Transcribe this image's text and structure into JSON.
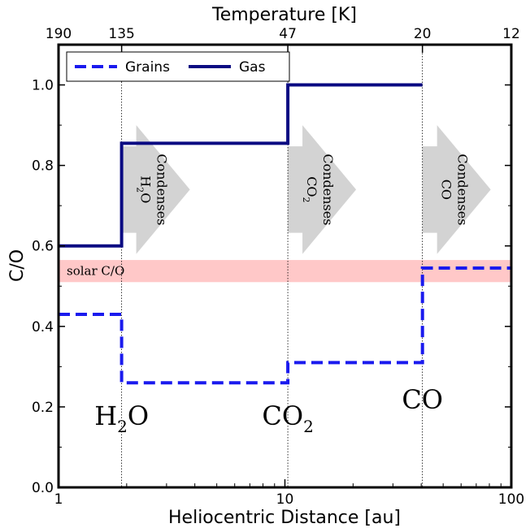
{
  "chart_data": {
    "type": "line",
    "xlabel": "Heliocentric Distance [au]",
    "ylabel": "C/O",
    "top_xlabel": "Temperature [K]",
    "xscale": "log",
    "xlim": [
      1,
      100
    ],
    "ylim": [
      0,
      1.1
    ],
    "x_ticks": [
      {
        "value": 1,
        "label": "1"
      },
      {
        "value": 10,
        "label": "10"
      },
      {
        "value": 100,
        "label": "100"
      }
    ],
    "y_ticks": [
      {
        "value": 0.0,
        "label": "0.0"
      },
      {
        "value": 0.2,
        "label": "0.2"
      },
      {
        "value": 0.4,
        "label": "0.4"
      },
      {
        "value": 0.6,
        "label": "0.6"
      },
      {
        "value": 0.8,
        "label": "0.8"
      },
      {
        "value": 1.0,
        "label": "1.0"
      }
    ],
    "top_ticks": [
      {
        "x": 1,
        "label": "190"
      },
      {
        "x": 1.9,
        "label": "135"
      },
      {
        "x": 10.3,
        "label": "47"
      },
      {
        "x": 40.5,
        "label": "20"
      },
      {
        "x": 100,
        "label": "12"
      }
    ],
    "snowlines": [
      1.9,
      10.3,
      40.5
    ],
    "series": [
      {
        "name": "Grains",
        "style": "dashed",
        "color": "#1a1aee",
        "x": [
          1,
          1.9,
          1.9,
          10.3,
          10.3,
          40.5,
          40.5,
          100
        ],
        "y": [
          0.43,
          0.43,
          0.26,
          0.26,
          0.31,
          0.31,
          0.545,
          0.545
        ]
      },
      {
        "name": "Gas",
        "style": "solid",
        "color": "#0a0a82",
        "x": [
          1,
          1.9,
          1.9,
          10.3,
          10.3,
          40.5
        ],
        "y": [
          0.6,
          0.6,
          0.855,
          0.855,
          1.0,
          1.0
        ]
      }
    ],
    "solar_band": {
      "label": "solar C/O",
      "y_min": 0.51,
      "y_max": 0.565,
      "color": "#ffc8c8"
    },
    "condensation_arrows": [
      {
        "x_start": 1.9,
        "species": "H",
        "sub": "2",
        "species_rest": "O",
        "word": "Condenses"
      },
      {
        "x_start": 10.3,
        "species": "CO",
        "sub": "2",
        "species_rest": "",
        "word": "Condenses"
      },
      {
        "x_start": 40.5,
        "species": "CO",
        "sub": "",
        "species_rest": "",
        "word": "Condenses"
      }
    ],
    "molecule_labels": [
      {
        "x": 1.9,
        "y": 0.18,
        "main": "H",
        "sub": "2",
        "rest": "O"
      },
      {
        "x": 10.3,
        "y": 0.18,
        "main": "CO",
        "sub": "2",
        "rest": ""
      },
      {
        "x": 40.5,
        "y": 0.22,
        "main": "CO",
        "sub": "",
        "rest": ""
      }
    ],
    "legend": {
      "position": "top-left",
      "ncol": 2
    },
    "grid": false
  }
}
